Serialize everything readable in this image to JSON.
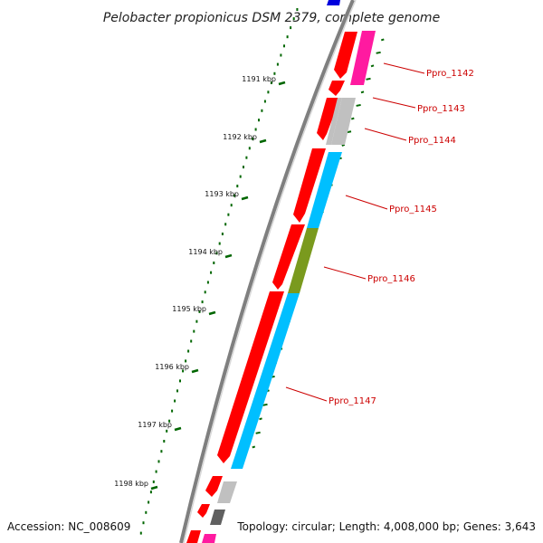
{
  "title": "Pelobacter propionicus DSM 2379, complete genome",
  "footer": {
    "accession": "Accession: NC_008609",
    "topology": "Topology: circular; Length: 4,008,000 bp; Genes: 3,643"
  },
  "ticks": [
    "1191 kbp",
    "1192 kbp",
    "1193 kbp",
    "1194 kbp",
    "1195 kbp",
    "1196 kbp",
    "1197 kbp",
    "1198 kbp"
  ],
  "genes": [
    {
      "label": "Ppro_1142",
      "color": "#ff1aa0"
    },
    {
      "label": "Ppro_1143",
      "color": "#c0c0c0"
    },
    {
      "label": "Ppro_1144",
      "color": "#c0c0c0"
    },
    {
      "label": "Ppro_1145",
      "color": "#00bfff"
    },
    {
      "label": "Ppro_1146",
      "color": "#7a9a1e"
    },
    {
      "label": "Ppro_1147",
      "color": "#00bfff"
    }
  ],
  "colors": {
    "backbone": "#7f7f7f",
    "cds": "#ff0000",
    "tick": "#006600",
    "label": "#cc0000",
    "blue_feature": "#0000dd",
    "dark_gray_feature": "#606060"
  }
}
